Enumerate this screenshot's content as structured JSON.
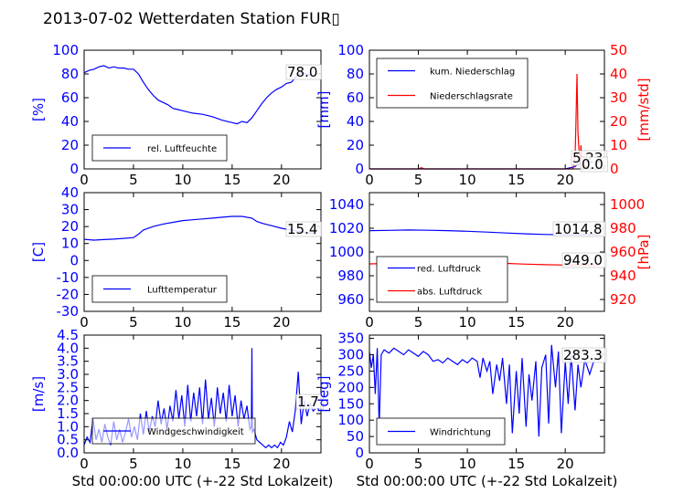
{
  "title": "2013-07-02 Wetterdaten Station FUR▯",
  "colors": {
    "primary": "#0000ff",
    "secondary": "#ff0000",
    "axis": "#000000"
  },
  "chart_data": [
    {
      "id": "humidity",
      "type": "line",
      "xlim": [
        0,
        24
      ],
      "ylim": [
        0,
        100
      ],
      "xticks": [
        0,
        5,
        10,
        15,
        20
      ],
      "yticks": [
        0,
        20,
        40,
        60,
        80,
        100
      ],
      "ylabel": "[%]",
      "xlabel": "",
      "legend_position": "lower-left",
      "current_value": "78.0",
      "series": [
        {
          "name": "rel. Luftfeuchte",
          "color": "#0000ff",
          "x": [
            0,
            0.5,
            1,
            1.5,
            2,
            2.5,
            3,
            3.5,
            4,
            4.5,
            5,
            5.5,
            6,
            6.5,
            7,
            7.5,
            8,
            8.5,
            9,
            9.5,
            10,
            11,
            12,
            13,
            14,
            15,
            15.5,
            16,
            16.5,
            17,
            17.5,
            18,
            18.5,
            19,
            19.5,
            20,
            20.5,
            21,
            21.5,
            22,
            22.5,
            23,
            23.5
          ],
          "y": [
            81,
            83,
            84,
            86,
            87,
            85,
            86,
            85,
            85,
            84,
            84,
            80,
            73,
            67,
            62,
            58,
            56,
            54,
            51,
            50,
            49,
            47,
            46,
            44,
            41,
            39,
            38,
            40,
            39,
            43,
            49,
            55,
            60,
            64,
            67,
            69,
            72,
            73,
            78,
            81,
            80,
            79,
            78
          ]
        }
      ]
    },
    {
      "id": "precipitation",
      "type": "line",
      "xlim": [
        0,
        24
      ],
      "ylim": [
        0,
        100
      ],
      "ylim_right": [
        0,
        50
      ],
      "xticks": [
        0,
        5,
        10,
        15,
        20
      ],
      "yticks": [
        0,
        20,
        40,
        60,
        80,
        100
      ],
      "yticks_right": [
        0,
        10,
        20,
        30,
        40,
        50
      ],
      "ylabel": "[mm]",
      "ylabel_right": "[mm/std]",
      "xlabel": "",
      "legend_position": "upper-left",
      "current_values": [
        "5.23",
        "0.0"
      ],
      "series": [
        {
          "name": "kum. Niederschlag",
          "axis": "left",
          "color": "#0000ff",
          "x": [
            0,
            5,
            10,
            15,
            20,
            21.0,
            21.3,
            21.6,
            22,
            23,
            23.5
          ],
          "y": [
            0,
            0,
            0,
            0,
            0,
            2,
            4.5,
            5.2,
            5.23,
            5.23,
            5.23
          ]
        },
        {
          "name": "Niederschlagsrate",
          "axis": "right",
          "color": "#ff0000",
          "x": [
            0,
            5,
            5.3,
            5.6,
            10,
            20.8,
            21.0,
            21.1,
            21.2,
            21.3,
            21.4,
            21.5,
            21.6,
            21.7,
            21.8,
            22,
            22.2,
            23.5
          ],
          "y": [
            0,
            0,
            0.5,
            0,
            0,
            0,
            5,
            20,
            40,
            15,
            8,
            2,
            10,
            3,
            0,
            2,
            0,
            0
          ]
        }
      ]
    },
    {
      "id": "temperature",
      "type": "line",
      "xlim": [
        0,
        24
      ],
      "ylim": [
        -30,
        40
      ],
      "xticks": [
        0,
        5,
        10,
        15,
        20
      ],
      "yticks": [
        -30,
        -20,
        -10,
        0,
        10,
        20,
        30,
        40
      ],
      "ylabel": "[C]",
      "xlabel": "",
      "legend_position": "lower-left",
      "current_value": "15.4",
      "series": [
        {
          "name": "Lufttemperatur",
          "color": "#0000ff",
          "x": [
            0,
            1,
            2,
            3,
            4,
            5,
            5.5,
            6,
            7,
            8,
            9,
            10,
            11,
            12,
            13,
            14,
            15,
            16,
            17,
            17.5,
            18,
            19,
            20,
            21,
            22,
            23,
            23.5
          ],
          "y": [
            12.5,
            12,
            12.3,
            12.6,
            13,
            13.5,
            15.5,
            18,
            20,
            21.5,
            22.5,
            23.5,
            24,
            24.5,
            25,
            25.5,
            26,
            26,
            25,
            23,
            22,
            20.5,
            19,
            18,
            17,
            16,
            15.4
          ]
        }
      ]
    },
    {
      "id": "pressure",
      "type": "line",
      "xlim": [
        0,
        24
      ],
      "ylim": [
        950,
        1050
      ],
      "ylim_right": [
        910,
        1010
      ],
      "xticks": [
        0,
        5,
        10,
        15,
        20
      ],
      "yticks": [
        960,
        980,
        1000,
        1020,
        1040
      ],
      "yticks_right": [
        920,
        940,
        960,
        980,
        1000
      ],
      "ylabel": "",
      "ylabel_right": "[hPa]",
      "xlabel": "",
      "legend_position": "lower-left",
      "current_values": [
        "1014.8",
        "949.0"
      ],
      "series": [
        {
          "name": "red. Luftdruck",
          "axis": "left",
          "color": "#0000ff",
          "x": [
            0,
            2,
            4,
            6,
            8,
            10,
            12,
            14,
            16,
            18,
            20,
            22,
            23.5
          ],
          "y": [
            1018,
            1018.2,
            1018.5,
            1018.3,
            1018,
            1017.5,
            1016.8,
            1016,
            1015.3,
            1014.8,
            1014.5,
            1014.8,
            1014.8
          ]
        },
        {
          "name": "abs. Luftdruck",
          "axis": "right",
          "color": "#ff0000",
          "x": [
            0,
            2,
            4,
            6,
            8,
            10,
            12,
            14,
            16,
            18,
            20,
            22,
            23.5
          ],
          "y": [
            950,
            950.3,
            951,
            951.4,
            951.7,
            951.5,
            951,
            950.4,
            949.8,
            949.3,
            949,
            949.1,
            949
          ]
        }
      ]
    },
    {
      "id": "windspeed",
      "type": "line",
      "xlim": [
        0,
        24
      ],
      "ylim": [
        0,
        4.5
      ],
      "xticks": [
        0,
        5,
        10,
        15,
        20
      ],
      "yticks": [
        0,
        0.5,
        1.0,
        1.5,
        2.0,
        2.5,
        3.0,
        3.5,
        4.0,
        4.5
      ],
      "ytick_labels": [
        "0.0",
        "0.5",
        "1.0",
        "1.5",
        "2.0",
        "2.5",
        "3.0",
        "3.5",
        "4.0",
        "4.5"
      ],
      "ylabel": "[m/s]",
      "xlabel": "Std 00:00:00 UTC (+-22 Std Lokalzeit)",
      "legend_position": "lower-left",
      "current_value": "1.7",
      "series": [
        {
          "name": "Windgeschwindigkeit",
          "color": "#0000ff",
          "x": [
            0,
            0.3,
            0.6,
            0.9,
            1.2,
            1.5,
            1.8,
            2.1,
            2.4,
            2.7,
            3,
            3.3,
            3.6,
            3.9,
            4.2,
            4.5,
            4.8,
            5.1,
            5.4,
            5.7,
            6,
            6.3,
            6.6,
            6.9,
            7.2,
            7.5,
            7.8,
            8.1,
            8.4,
            8.7,
            9,
            9.3,
            9.6,
            9.9,
            10.2,
            10.5,
            10.8,
            11.1,
            11.4,
            11.7,
            12,
            12.3,
            12.6,
            12.9,
            13.2,
            13.5,
            13.8,
            14.1,
            14.4,
            14.7,
            15,
            15.3,
            15.6,
            15.9,
            16.2,
            16.5,
            16.8,
            16.95,
            17.0,
            17.05,
            17.2,
            17.5,
            17.8,
            18.1,
            18.4,
            18.7,
            19,
            19.3,
            19.6,
            19.9,
            20.2,
            20.5,
            20.8,
            21.1,
            21.4,
            21.7,
            22,
            22.3,
            22.6,
            22.9,
            23.2,
            23.5
          ],
          "y": [
            0.3,
            0.6,
            0.4,
            1.3,
            0.5,
            0.9,
            0.4,
            1.1,
            0.6,
            0.3,
            1.2,
            0.5,
            0.9,
            0.4,
            0.8,
            1.3,
            0.6,
            1.0,
            0.5,
            1.5,
            0.7,
            1.6,
            0.8,
            1.4,
            1.0,
            2.0,
            1.1,
            1.7,
            0.9,
            1.8,
            1.2,
            2.4,
            1.3,
            2.2,
            1.0,
            2.6,
            1.2,
            2.3,
            1.4,
            2.5,
            1.1,
            2.8,
            1.3,
            2.1,
            1.0,
            2.5,
            1.5,
            2.3,
            1.2,
            2.6,
            1.4,
            2.2,
            1.0,
            2.0,
            1.3,
            1.8,
            0.9,
            1.0,
            4.0,
            0.8,
            0.9,
            0.5,
            0.4,
            0.3,
            0.2,
            0.3,
            0.2,
            0.3,
            0.2,
            0.4,
            0.3,
            0.6,
            1.2,
            0.8,
            1.6,
            3.1,
            1.1,
            2.0,
            1.4,
            1.9,
            1.6,
            1.7
          ]
        }
      ]
    },
    {
      "id": "winddirection",
      "type": "line",
      "xlim": [
        0,
        24
      ],
      "ylim": [
        0,
        360
      ],
      "xticks": [
        0,
        5,
        10,
        15,
        20
      ],
      "yticks": [
        0,
        50,
        100,
        150,
        200,
        250,
        300,
        350
      ],
      "ylabel": "[deg]",
      "xlabel": "Std 00:00:00 UTC (+-22 Std Lokalzeit)",
      "legend_position": "lower-left",
      "current_value": "283.3",
      "series": [
        {
          "name": "Windrichtung",
          "color": "#0000ff",
          "x": [
            0,
            0.2,
            0.4,
            0.6,
            0.8,
            1.0,
            1.2,
            1.5,
            2,
            2.5,
            3,
            3.5,
            4,
            4.5,
            5,
            5.5,
            6,
            6.5,
            7,
            7.5,
            8,
            8.5,
            9,
            9.5,
            10,
            10.5,
            11,
            11.3,
            11.6,
            12,
            12.3,
            12.6,
            13,
            13.3,
            13.6,
            14,
            14.3,
            14.6,
            15,
            15.3,
            15.6,
            16,
            16.3,
            16.6,
            17,
            17.3,
            17.6,
            18,
            18.3,
            18.6,
            19,
            19.3,
            19.6,
            20,
            20.3,
            20.6,
            21,
            21.3,
            21.6,
            22,
            22.5,
            23,
            23.5
          ],
          "y": [
            310,
            260,
            300,
            180,
            320,
            80,
            300,
            315,
            305,
            320,
            310,
            300,
            315,
            305,
            295,
            310,
            300,
            280,
            285,
            275,
            290,
            280,
            270,
            285,
            275,
            290,
            280,
            230,
            290,
            250,
            280,
            180,
            270,
            220,
            290,
            150,
            270,
            60,
            250,
            120,
            290,
            80,
            240,
            160,
            280,
            50,
            260,
            300,
            90,
            330,
            200,
            310,
            60,
            280,
            150,
            300,
            130,
            270,
            200,
            285,
            240,
            290,
            283
          ]
        }
      ]
    }
  ]
}
